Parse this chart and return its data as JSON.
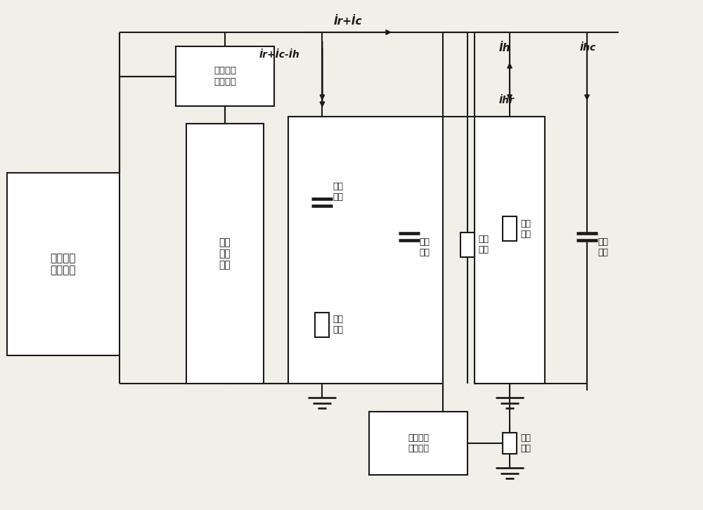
{
  "bg_color": "#f0efe8",
  "lc": "#1a1a1a",
  "lw": 1.5,
  "figsize": [
    10.0,
    7.26
  ],
  "dpi": 100,
  "labels": {
    "gaoya_serial": "高压串联\n谐振单元",
    "gaoya_biaozhun": "高压\n标准\n电容",
    "jiezhi_celiang": "介质损耗\n测量单元",
    "jiezhi_kongzhi": "介质损耗\n控制单元",
    "di1_dianrong": "第一\n电容",
    "di1_dianju": "第一\n电阻",
    "di2_dianrong": "第二\n电容",
    "di2_dianju": "第二\n电阻",
    "di3_dianju": "第三\n电阻",
    "di3_dianrong": "第三\n电容",
    "dudi_dianju": "对地\n电阻",
    "IrIc": "İr+İc",
    "IrIcIh": "İr+İc-İh",
    "Ih": "İh",
    "Ihr": "İhr",
    "Ihc": "İhc"
  }
}
